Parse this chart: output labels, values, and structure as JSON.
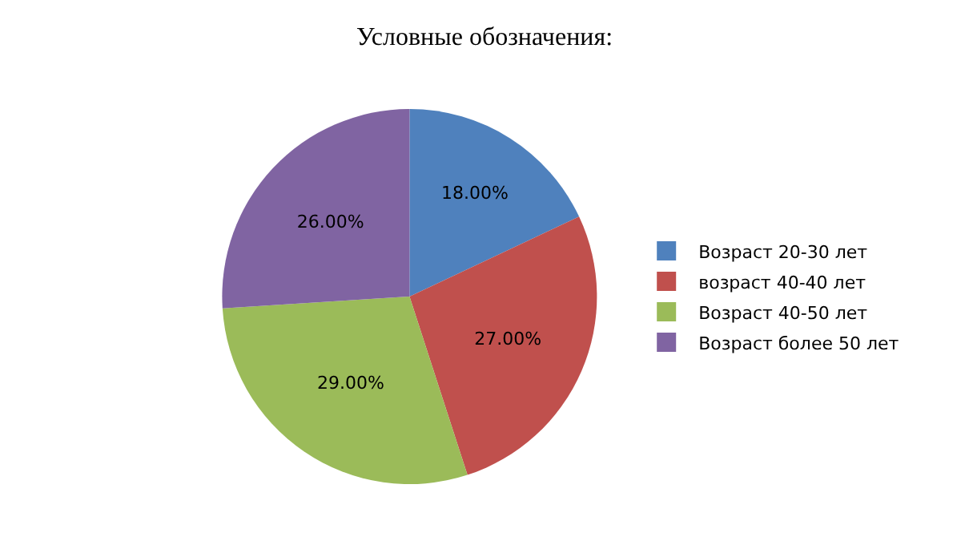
{
  "chart_data": {
    "type": "pie",
    "title": "Условные обозначения:",
    "categories": [
      "Возраст 20-30 лет",
      "возраст 40-40 лет",
      "Возраст 40-50 лет",
      "Возраст более 50 лет"
    ],
    "values": [
      18,
      27,
      29,
      26
    ],
    "colors": [
      "#4f81bd",
      "#c0504d",
      "#9bbb59",
      "#8064a2"
    ],
    "value_labels": [
      "18.00%",
      "27.00%",
      "29.00%",
      "26.00%"
    ],
    "legend": "right"
  }
}
